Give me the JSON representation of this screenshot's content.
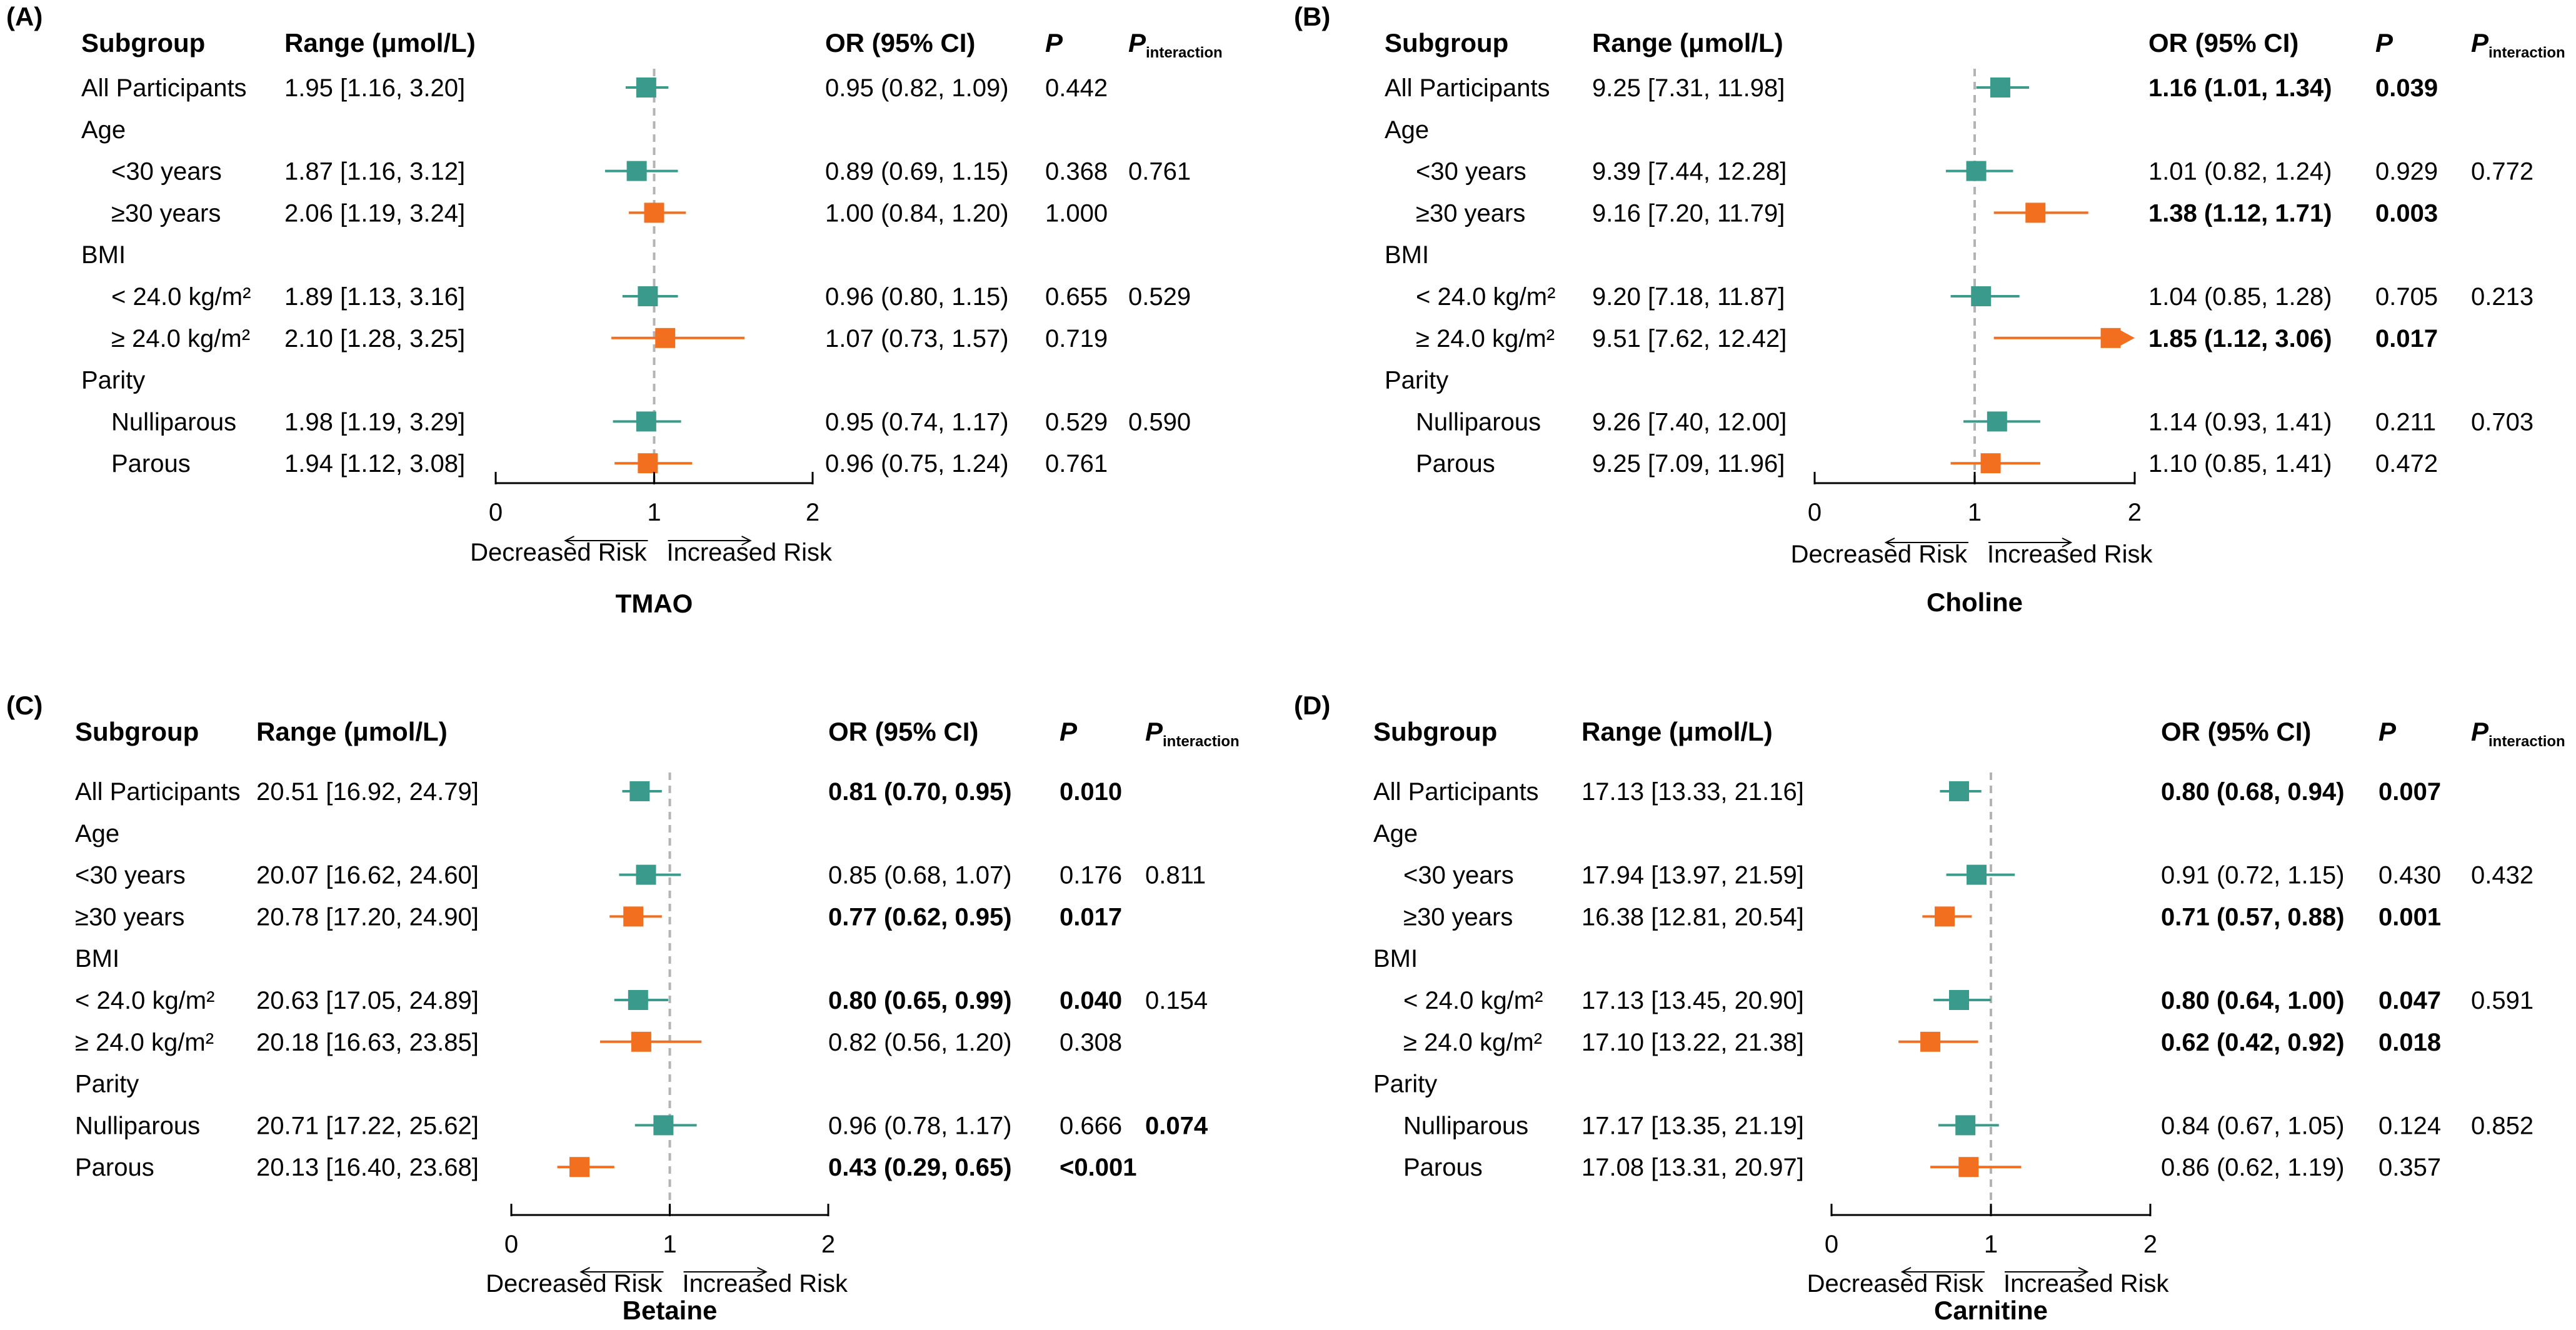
{
  "figure": {
    "columns": {
      "subgroup": "Subgroup",
      "range": "Range (μmol/L)",
      "or": "OR (95% CI)",
      "p": "P",
      "pint_main": "P",
      "pint_sub": "interaction"
    },
    "axis_labels": {
      "decreased": "Decreased Risk",
      "increased": "Increased Risk"
    },
    "colors": {
      "teal": "#3a9a8c",
      "orange": "#f26f1f",
      "ref_line": "#b3b3b3",
      "axis": "#000000"
    }
  },
  "chart_data": [
    {
      "type": "forest",
      "panel_label": "(A)",
      "title": "TMAO",
      "xlim": [
        0,
        2
      ],
      "ticks": [
        0,
        1,
        2
      ],
      "reference": 1,
      "rows": [
        {
          "label": "All Participants",
          "indent": false,
          "header": false,
          "range": "1.95 [1.16, 3.20]",
          "or_text": "0.95 (0.82, 1.09)",
          "p": "0.442",
          "pint": "",
          "bold_or": false,
          "bold_p": false,
          "bold_pint": false,
          "or": 0.95,
          "lo": 0.82,
          "hi": 1.09,
          "color": "teal",
          "arrow": false
        },
        {
          "label": "Age",
          "header": true
        },
        {
          "label": "<30 years",
          "indent": true,
          "header": false,
          "range": "1.87 [1.16, 3.12]",
          "or_text": "0.89 (0.69, 1.15)",
          "p": "0.368",
          "pint": "0.761",
          "bold_or": false,
          "bold_p": false,
          "bold_pint": false,
          "or": 0.89,
          "lo": 0.69,
          "hi": 1.15,
          "color": "teal",
          "arrow": false
        },
        {
          "label": "≥30 years",
          "indent": true,
          "header": false,
          "range": "2.06 [1.19, 3.24]",
          "or_text": "1.00 (0.84, 1.20)",
          "p": "1.000",
          "pint": "",
          "bold_or": false,
          "bold_p": false,
          "bold_pint": false,
          "or": 1.0,
          "lo": 0.84,
          "hi": 1.2,
          "color": "orange",
          "arrow": false
        },
        {
          "label": "BMI",
          "header": true
        },
        {
          "label": "< 24.0 kg/m²",
          "indent": true,
          "header": false,
          "range": "1.89 [1.13, 3.16]",
          "or_text": "0.96 (0.80, 1.15)",
          "p": "0.655",
          "pint": "0.529",
          "bold_or": false,
          "bold_p": false,
          "bold_pint": false,
          "or": 0.96,
          "lo": 0.8,
          "hi": 1.15,
          "color": "teal",
          "arrow": false
        },
        {
          "label": "≥ 24.0 kg/m²",
          "indent": true,
          "header": false,
          "range": "2.10 [1.28, 3.25]",
          "or_text": "1.07 (0.73, 1.57)",
          "p": "0.719",
          "pint": "",
          "bold_or": false,
          "bold_p": false,
          "bold_pint": false,
          "or": 1.07,
          "lo": 0.73,
          "hi": 1.57,
          "color": "orange",
          "arrow": false
        },
        {
          "label": "Parity",
          "header": true
        },
        {
          "label": "Nulliparous",
          "indent": true,
          "header": false,
          "range": "1.98 [1.19, 3.29]",
          "or_text": "0.95 (0.74, 1.17)",
          "p": "0.529",
          "pint": "0.590",
          "bold_or": false,
          "bold_p": false,
          "bold_pint": false,
          "or": 0.95,
          "lo": 0.74,
          "hi": 1.17,
          "color": "teal",
          "arrow": false
        },
        {
          "label": "Parous",
          "indent": true,
          "header": false,
          "range": "1.94 [1.12, 3.08]",
          "or_text": "0.96 (0.75, 1.24)",
          "p": "0.761",
          "pint": "",
          "bold_or": false,
          "bold_p": false,
          "bold_pint": false,
          "or": 0.96,
          "lo": 0.75,
          "hi": 1.24,
          "color": "orange",
          "arrow": false
        }
      ]
    },
    {
      "type": "forest",
      "panel_label": "(B)",
      "title": "Choline",
      "xlim": [
        0,
        2
      ],
      "ticks": [
        0,
        1,
        2
      ],
      "reference": 1,
      "rows": [
        {
          "label": "All Participants",
          "indent": false,
          "header": false,
          "range": "9.25 [7.31, 11.98]",
          "or_text": "1.16 (1.01, 1.34)",
          "p": "0.039",
          "pint": "",
          "bold_or": true,
          "bold_p": true,
          "bold_pint": false,
          "or": 1.16,
          "lo": 1.01,
          "hi": 1.34,
          "color": "teal",
          "arrow": false
        },
        {
          "label": "Age",
          "header": true
        },
        {
          "label": "<30 years",
          "indent": true,
          "header": false,
          "range": "9.39 [7.44, 12.28]",
          "or_text": "1.01 (0.82, 1.24)",
          "p": "0.929",
          "pint": "0.772",
          "bold_or": false,
          "bold_p": false,
          "bold_pint": false,
          "or": 1.01,
          "lo": 0.82,
          "hi": 1.24,
          "color": "teal",
          "arrow": false
        },
        {
          "label": "≥30 years",
          "indent": true,
          "header": false,
          "range": "9.16 [7.20, 11.79]",
          "or_text": "1.38 (1.12, 1.71)",
          "p": "0.003",
          "pint": "",
          "bold_or": true,
          "bold_p": true,
          "bold_pint": false,
          "or": 1.38,
          "lo": 1.12,
          "hi": 1.71,
          "color": "orange",
          "arrow": false
        },
        {
          "label": "BMI",
          "header": true
        },
        {
          "label": "< 24.0 kg/m²",
          "indent": true,
          "header": false,
          "range": "9.20 [7.18, 11.87]",
          "or_text": "1.04 (0.85, 1.28)",
          "p": "0.705",
          "pint": "0.213",
          "bold_or": false,
          "bold_p": false,
          "bold_pint": false,
          "or": 1.04,
          "lo": 0.85,
          "hi": 1.28,
          "color": "teal",
          "arrow": false
        },
        {
          "label": "≥ 24.0 kg/m²",
          "indent": true,
          "header": false,
          "range": "9.51 [7.62, 12.42]",
          "or_text": "1.85 (1.12, 3.06)",
          "p": "0.017",
          "pint": "",
          "bold_or": true,
          "bold_p": true,
          "bold_pint": false,
          "or": 1.85,
          "lo": 1.12,
          "hi": 3.06,
          "color": "orange",
          "arrow": true
        },
        {
          "label": "Parity",
          "header": true
        },
        {
          "label": "Nulliparous",
          "indent": true,
          "header": false,
          "range": "9.26 [7.40, 12.00]",
          "or_text": "1.14 (0.93, 1.41)",
          "p": "0.211",
          "pint": "0.703",
          "bold_or": false,
          "bold_p": false,
          "bold_pint": false,
          "or": 1.14,
          "lo": 0.93,
          "hi": 1.41,
          "color": "teal",
          "arrow": false
        },
        {
          "label": "Parous",
          "indent": true,
          "header": false,
          "range": "9.25 [7.09, 11.96]",
          "or_text": "1.10 (0.85, 1.41)",
          "p": "0.472",
          "pint": "",
          "bold_or": false,
          "bold_p": false,
          "bold_pint": false,
          "or": 1.1,
          "lo": 0.85,
          "hi": 1.41,
          "color": "orange",
          "arrow": false
        }
      ]
    },
    {
      "type": "forest",
      "panel_label": "(C)",
      "title": "Betaine",
      "xlim": [
        0,
        2
      ],
      "ticks": [
        0,
        1,
        2
      ],
      "reference": 1,
      "rows": [
        {
          "label": "All Participants",
          "indent": false,
          "header": false,
          "range": "20.51 [16.92, 24.79]",
          "or_text": "0.81 (0.70, 0.95)",
          "p": "0.010",
          "pint": "",
          "bold_or": true,
          "bold_p": true,
          "bold_pint": false,
          "or": 0.81,
          "lo": 0.7,
          "hi": 0.95,
          "color": "teal",
          "arrow": false
        },
        {
          "label": "Age",
          "header": true
        },
        {
          "label": "<30 years",
          "indent": true,
          "header": false,
          "range": "20.07 [16.62, 24.60]",
          "or_text": "0.85 (0.68, 1.07)",
          "p": "0.176",
          "pint": "0.811",
          "bold_or": false,
          "bold_p": false,
          "bold_pint": false,
          "or": 0.85,
          "lo": 0.68,
          "hi": 1.07,
          "color": "teal",
          "arrow": false
        },
        {
          "label": "≥30 years",
          "indent": true,
          "header": false,
          "range": "20.78 [17.20, 24.90]",
          "or_text": "0.77 (0.62, 0.95)",
          "p": "0.017",
          "pint": "",
          "bold_or": true,
          "bold_p": true,
          "bold_pint": false,
          "or": 0.77,
          "lo": 0.62,
          "hi": 0.95,
          "color": "orange",
          "arrow": false
        },
        {
          "label": "BMI",
          "header": true
        },
        {
          "label": "< 24.0 kg/m²",
          "indent": true,
          "header": false,
          "range": "20.63 [17.05, 24.89]",
          "or_text": "0.80 (0.65, 0.99)",
          "p": "0.040",
          "pint": "0.154",
          "bold_or": true,
          "bold_p": true,
          "bold_pint": false,
          "or": 0.8,
          "lo": 0.65,
          "hi": 0.99,
          "color": "teal",
          "arrow": false
        },
        {
          "label": "≥ 24.0 kg/m²",
          "indent": true,
          "header": false,
          "range": "20.18 [16.63, 23.85]",
          "or_text": "0.82 (0.56, 1.20)",
          "p": "0.308",
          "pint": "",
          "bold_or": false,
          "bold_p": false,
          "bold_pint": false,
          "or": 0.82,
          "lo": 0.56,
          "hi": 1.2,
          "color": "orange",
          "arrow": false
        },
        {
          "label": "Parity",
          "header": true
        },
        {
          "label": "Nulliparous",
          "indent": true,
          "header": false,
          "range": "20.71 [17.22, 25.62]",
          "or_text": "0.96 (0.78, 1.17)",
          "p": "0.666",
          "pint": "0.074",
          "bold_or": false,
          "bold_p": false,
          "bold_pint": true,
          "or": 0.96,
          "lo": 0.78,
          "hi": 1.17,
          "color": "teal",
          "arrow": false
        },
        {
          "label": "Parous",
          "indent": true,
          "header": false,
          "range": "20.13 [16.40, 23.68]",
          "or_text": "0.43 (0.29, 0.65)",
          "p": "<0.001",
          "pint": "",
          "bold_or": true,
          "bold_p": true,
          "bold_pint": false,
          "or": 0.43,
          "lo": 0.29,
          "hi": 0.65,
          "color": "orange",
          "arrow": false
        }
      ]
    },
    {
      "type": "forest",
      "panel_label": "(D)",
      "title": "Carnitine",
      "xlim": [
        0,
        2
      ],
      "ticks": [
        0,
        1,
        2
      ],
      "reference": 1,
      "rows": [
        {
          "label": "All Participants",
          "indent": false,
          "header": false,
          "range": "17.13 [13.33, 21.16]",
          "or_text": "0.80 (0.68, 0.94)",
          "p": "0.007",
          "pint": "",
          "bold_or": true,
          "bold_p": true,
          "bold_pint": false,
          "or": 0.8,
          "lo": 0.68,
          "hi": 0.94,
          "color": "teal",
          "arrow": false
        },
        {
          "label": "Age",
          "header": true
        },
        {
          "label": "<30 years",
          "indent": true,
          "header": false,
          "range": "17.94 [13.97, 21.59]",
          "or_text": "0.91 (0.72, 1.15)",
          "p": "0.430",
          "pint": "0.432",
          "bold_or": false,
          "bold_p": false,
          "bold_pint": false,
          "or": 0.91,
          "lo": 0.72,
          "hi": 1.15,
          "color": "teal",
          "arrow": false
        },
        {
          "label": "≥30 years",
          "indent": true,
          "header": false,
          "range": "16.38 [12.81, 20.54]",
          "or_text": "0.71 (0.57, 0.88)",
          "p": "0.001",
          "pint": "",
          "bold_or": true,
          "bold_p": true,
          "bold_pint": false,
          "or": 0.71,
          "lo": 0.57,
          "hi": 0.88,
          "color": "orange",
          "arrow": false
        },
        {
          "label": "BMI",
          "header": true
        },
        {
          "label": "< 24.0 kg/m²",
          "indent": true,
          "header": false,
          "range": "17.13 [13.45, 20.90]",
          "or_text": "0.80 (0.64, 1.00)",
          "p": "0.047",
          "pint": "0.591",
          "bold_or": true,
          "bold_p": true,
          "bold_pint": false,
          "or": 0.8,
          "lo": 0.64,
          "hi": 1.0,
          "color": "teal",
          "arrow": false
        },
        {
          "label": "≥ 24.0 kg/m²",
          "indent": true,
          "header": false,
          "range": "17.10 [13.22, 21.38]",
          "or_text": "0.62 (0.42, 0.92)",
          "p": "0.018",
          "pint": "",
          "bold_or": true,
          "bold_p": true,
          "bold_pint": false,
          "or": 0.62,
          "lo": 0.42,
          "hi": 0.92,
          "color": "orange",
          "arrow": false
        },
        {
          "label": "Parity",
          "header": true
        },
        {
          "label": "Nulliparous",
          "indent": true,
          "header": false,
          "range": "17.17 [13.35, 21.19]",
          "or_text": "0.84 (0.67, 1.05)",
          "p": "0.124",
          "pint": "0.852",
          "bold_or": false,
          "bold_p": false,
          "bold_pint": false,
          "or": 0.84,
          "lo": 0.67,
          "hi": 1.05,
          "color": "teal",
          "arrow": false
        },
        {
          "label": "Parous",
          "indent": true,
          "header": false,
          "range": "17.08 [13.31, 20.97]",
          "or_text": "0.86 (0.62, 1.19)",
          "p": "0.357",
          "pint": "",
          "bold_or": false,
          "bold_p": false,
          "bold_pint": false,
          "or": 0.86,
          "lo": 0.62,
          "hi": 1.19,
          "color": "orange",
          "arrow": false
        }
      ]
    }
  ]
}
